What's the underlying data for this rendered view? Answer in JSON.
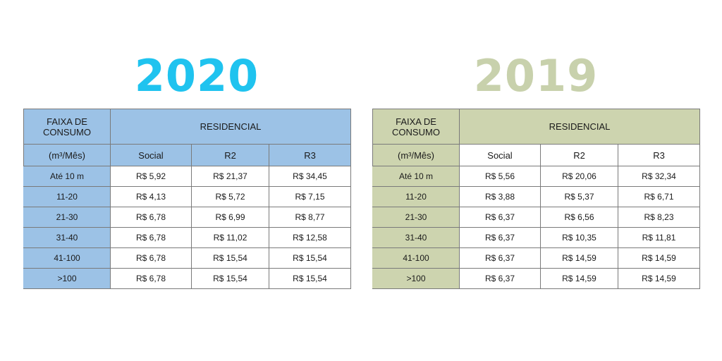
{
  "tables": [
    {
      "year": "2020",
      "color": "#1fc3ef",
      "shade": "#9cc2e6",
      "faixa_label": "FAIXA DE CONSUMO",
      "residencial_label": "RESIDENCIAL",
      "unit_label": "(m³/Mês)",
      "columns": [
        "Social",
        "R2",
        "R3"
      ],
      "rows": [
        {
          "range": "Até 10 m",
          "values": [
            "R$ 5,92",
            "R$ 21,37",
            "R$ 34,45"
          ]
        },
        {
          "range": "11-20",
          "values": [
            "R$ 4,13",
            "R$ 5,72",
            "R$ 7,15"
          ]
        },
        {
          "range": "21-30",
          "values": [
            "R$ 6,78",
            "R$ 6,99",
            "R$ 8,77"
          ]
        },
        {
          "range": "31-40",
          "values": [
            "R$ 6,78",
            "R$ 11,02",
            "R$ 12,58"
          ]
        },
        {
          "range": "41-100",
          "values": [
            "R$ 6,78",
            "R$ 15,54",
            "R$ 15,54"
          ]
        },
        {
          "range": ">100",
          "values": [
            "R$ 6,78",
            "R$ 15,54",
            "R$ 15,54"
          ]
        }
      ]
    },
    {
      "year": "2019",
      "color": "#c8d1ac",
      "shade": "#cdd4af",
      "faixa_label": "FAIXA DE CONSUMO",
      "residencial_label": "RESIDENCIAL",
      "unit_label": "(m³/Mês)",
      "columns": [
        "Social",
        "R2",
        "R3"
      ],
      "rows": [
        {
          "range": "Até 10 m",
          "values": [
            "R$ 5,56",
            "R$ 20,06",
            "R$ 32,34"
          ]
        },
        {
          "range": "11-20",
          "values": [
            "R$ 3,88",
            "R$ 5,37",
            "R$ 6,71"
          ]
        },
        {
          "range": "21-30",
          "values": [
            "R$ 6,37",
            "R$ 6,56",
            "R$ 8,23"
          ]
        },
        {
          "range": "31-40",
          "values": [
            "R$ 6,37",
            "R$ 10,35",
            "R$ 11,81"
          ]
        },
        {
          "range": "41-100",
          "values": [
            "R$ 6,37",
            "R$ 14,59",
            "R$ 14,59"
          ]
        },
        {
          "range": ">100",
          "values": [
            "R$ 6,37",
            "R$ 14,59",
            "R$ 14,59"
          ]
        }
      ]
    }
  ]
}
